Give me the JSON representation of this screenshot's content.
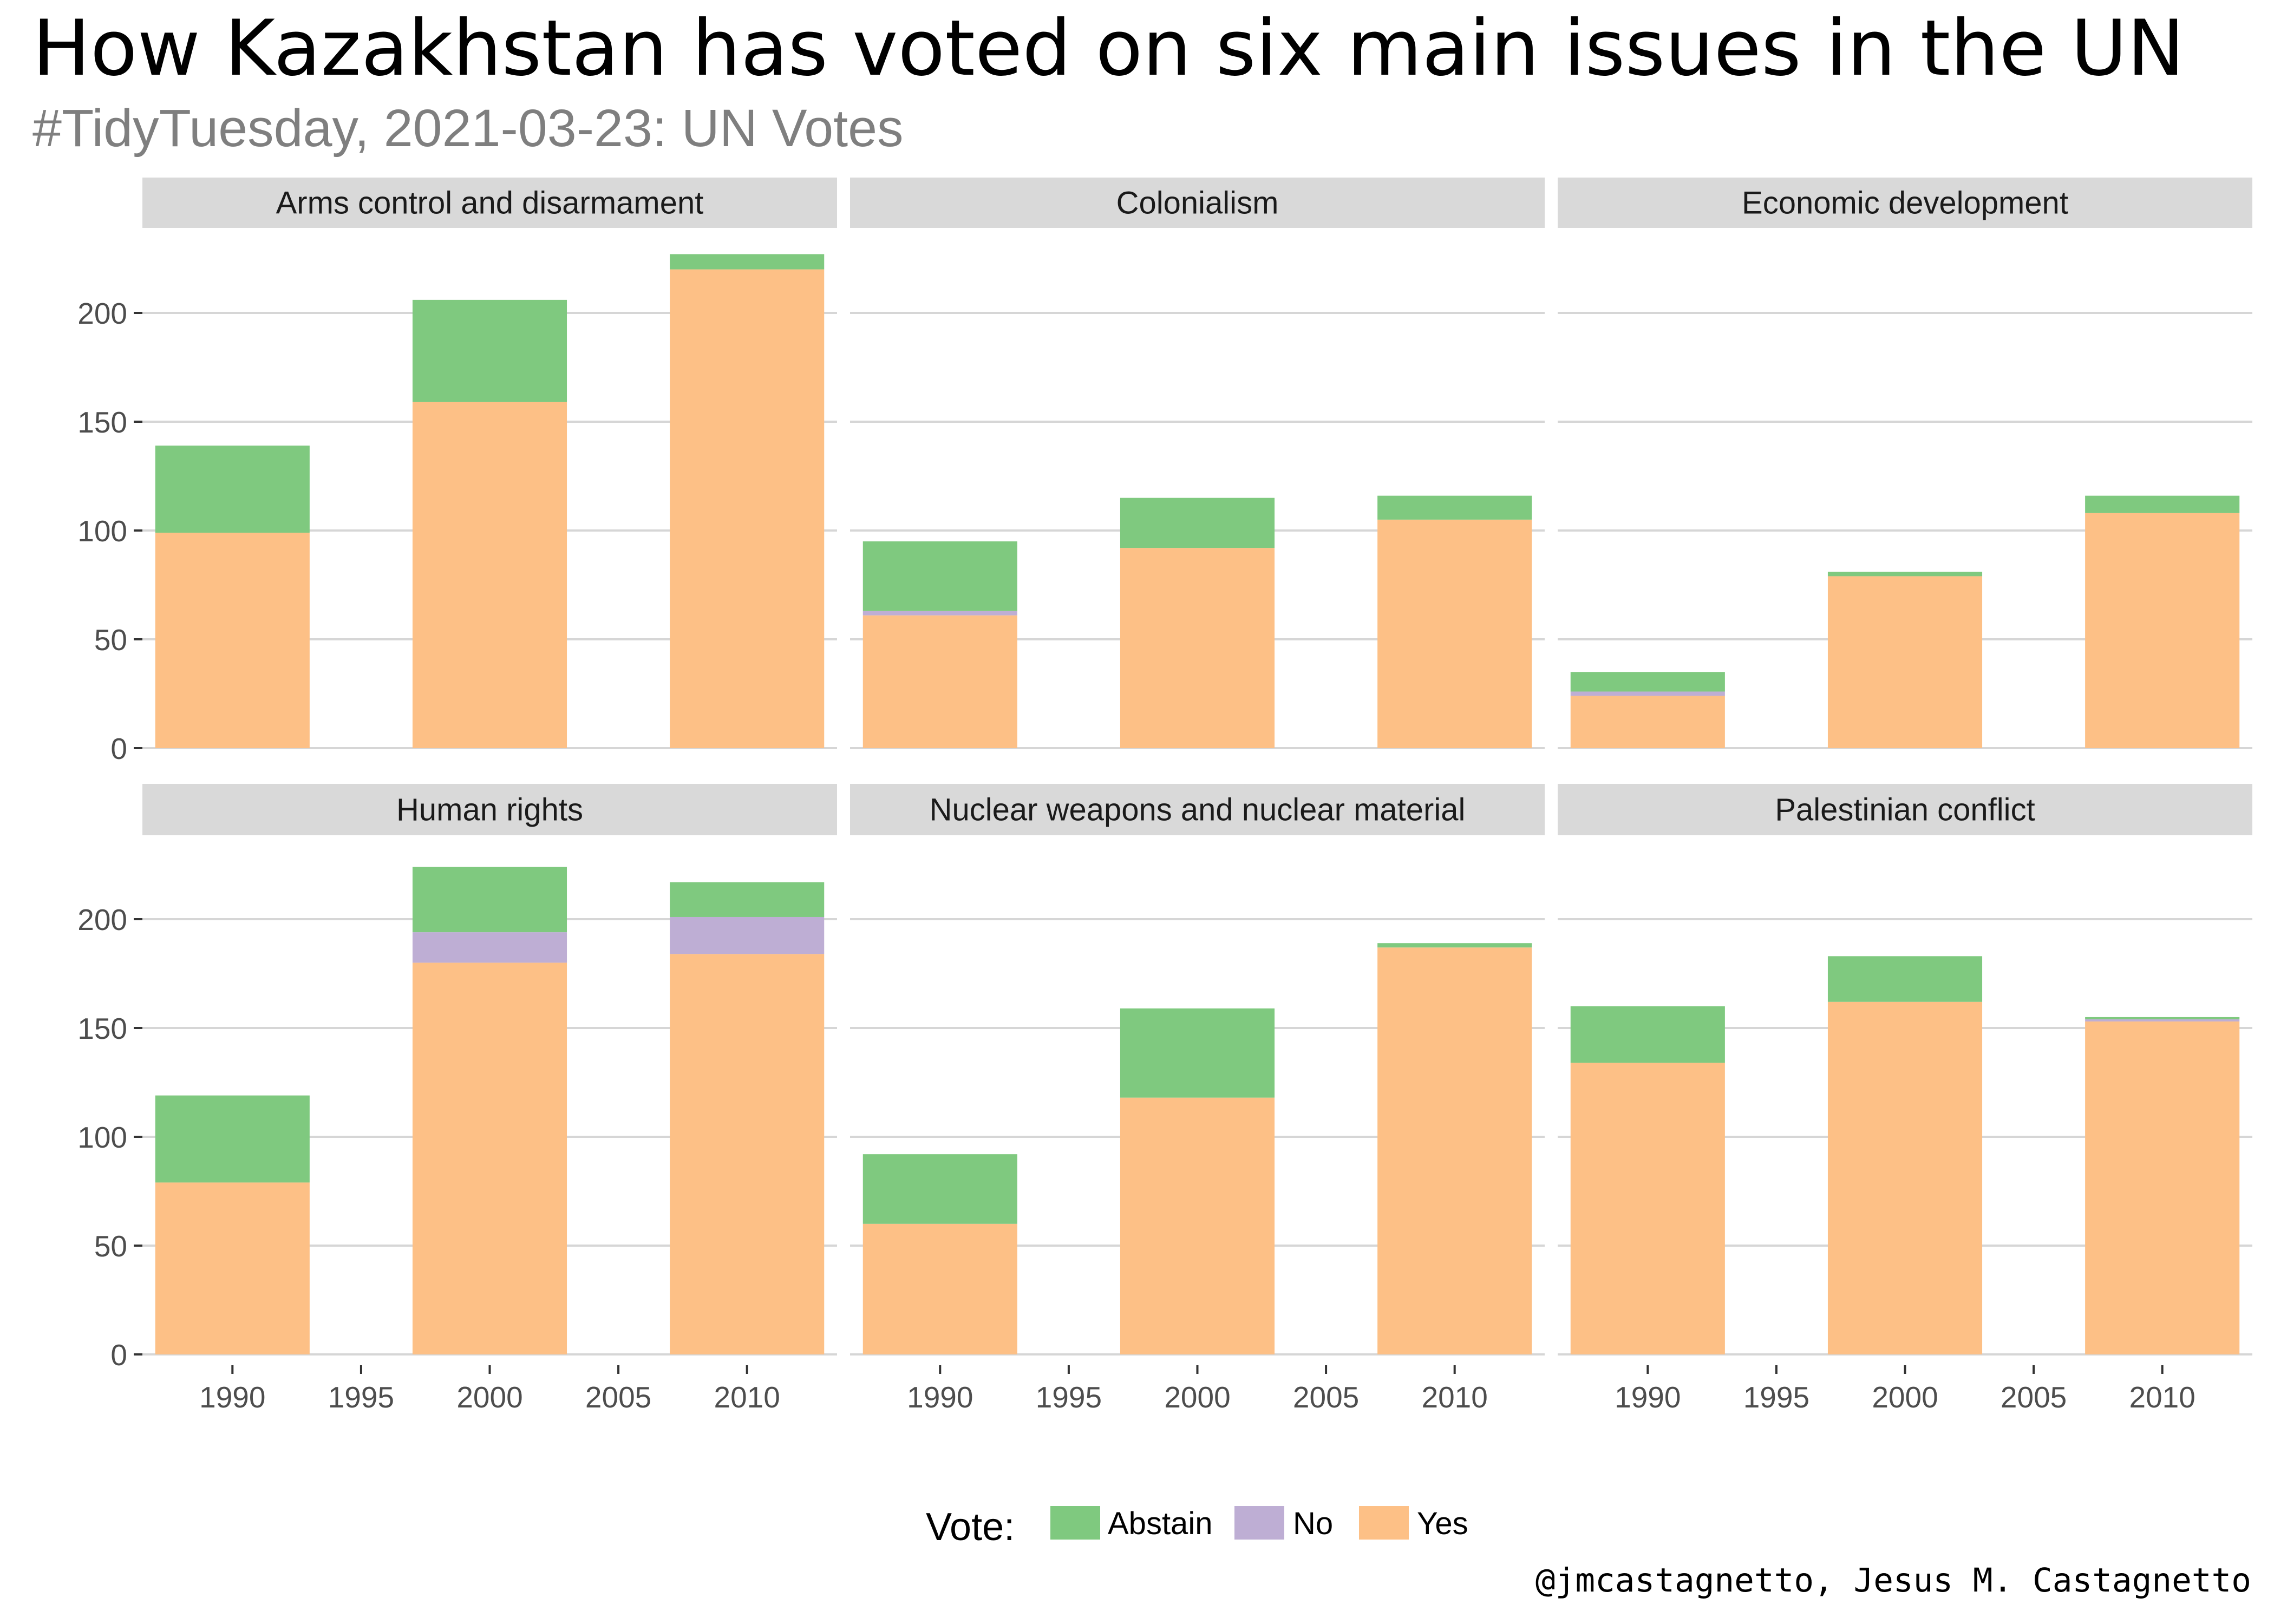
{
  "title": "How Kazakhstan has voted on six main issues in the UN",
  "subtitle": "#TidyTuesday, 2021-03-23: UN Votes",
  "caption": "@jmcastagnetto, Jesus M. Castagnetto",
  "colors": {
    "Abstain": "#7fc97f",
    "No": "#beaed4",
    "Yes": "#fdc086"
  },
  "chart_data": {
    "type": "bar",
    "stacked": true,
    "facets": [
      {
        "label": "Arms control and disarmament",
        "bars": [
          {
            "x": 1990,
            "Yes": 99,
            "No": 0,
            "Abstain": 40
          },
          {
            "x": 2000,
            "Yes": 159,
            "No": 0,
            "Abstain": 47
          },
          {
            "x": 2010,
            "Yes": 220,
            "No": 0,
            "Abstain": 7
          }
        ]
      },
      {
        "label": "Colonialism",
        "bars": [
          {
            "x": 1990,
            "Yes": 61,
            "No": 2,
            "Abstain": 32
          },
          {
            "x": 2000,
            "Yes": 92,
            "No": 0,
            "Abstain": 23
          },
          {
            "x": 2010,
            "Yes": 105,
            "No": 0,
            "Abstain": 11
          }
        ]
      },
      {
        "label": "Economic development",
        "bars": [
          {
            "x": 1990,
            "Yes": 24,
            "No": 2,
            "Abstain": 9
          },
          {
            "x": 2000,
            "Yes": 79,
            "No": 0,
            "Abstain": 2
          },
          {
            "x": 2010,
            "Yes": 108,
            "No": 0,
            "Abstain": 8
          }
        ]
      },
      {
        "label": "Human rights",
        "bars": [
          {
            "x": 1990,
            "Yes": 79,
            "No": 0,
            "Abstain": 40
          },
          {
            "x": 2000,
            "Yes": 180,
            "No": 14,
            "Abstain": 30
          },
          {
            "x": 2010,
            "Yes": 184,
            "No": 17,
            "Abstain": 16
          }
        ]
      },
      {
        "label": "Nuclear weapons and nuclear material",
        "bars": [
          {
            "x": 1990,
            "Yes": 60,
            "No": 0,
            "Abstain": 32
          },
          {
            "x": 2000,
            "Yes": 118,
            "No": 0,
            "Abstain": 41
          },
          {
            "x": 2010,
            "Yes": 187,
            "No": 0,
            "Abstain": 2
          }
        ]
      },
      {
        "label": "Palestinian conflict",
        "bars": [
          {
            "x": 1990,
            "Yes": 134,
            "No": 0,
            "Abstain": 26
          },
          {
            "x": 2000,
            "Yes": 162,
            "No": 0,
            "Abstain": 21
          },
          {
            "x": 2010,
            "Yes": 153,
            "No": 1,
            "Abstain": 1
          }
        ]
      }
    ],
    "stack_order": [
      "Yes",
      "No",
      "Abstain"
    ],
    "x_ticks": [
      1990,
      1995,
      2000,
      2005,
      2010
    ],
    "xlim": [
      1986.5,
      2013.5
    ],
    "y_ticks": [
      0,
      50,
      100,
      150,
      200
    ],
    "ylim": [
      0,
      227
    ],
    "xlabel": "",
    "ylabel": "",
    "legend": {
      "title": "Vote:",
      "position": "bottom",
      "entries": [
        "Abstain",
        "No",
        "Yes"
      ]
    },
    "grid": "horizontal-major"
  }
}
